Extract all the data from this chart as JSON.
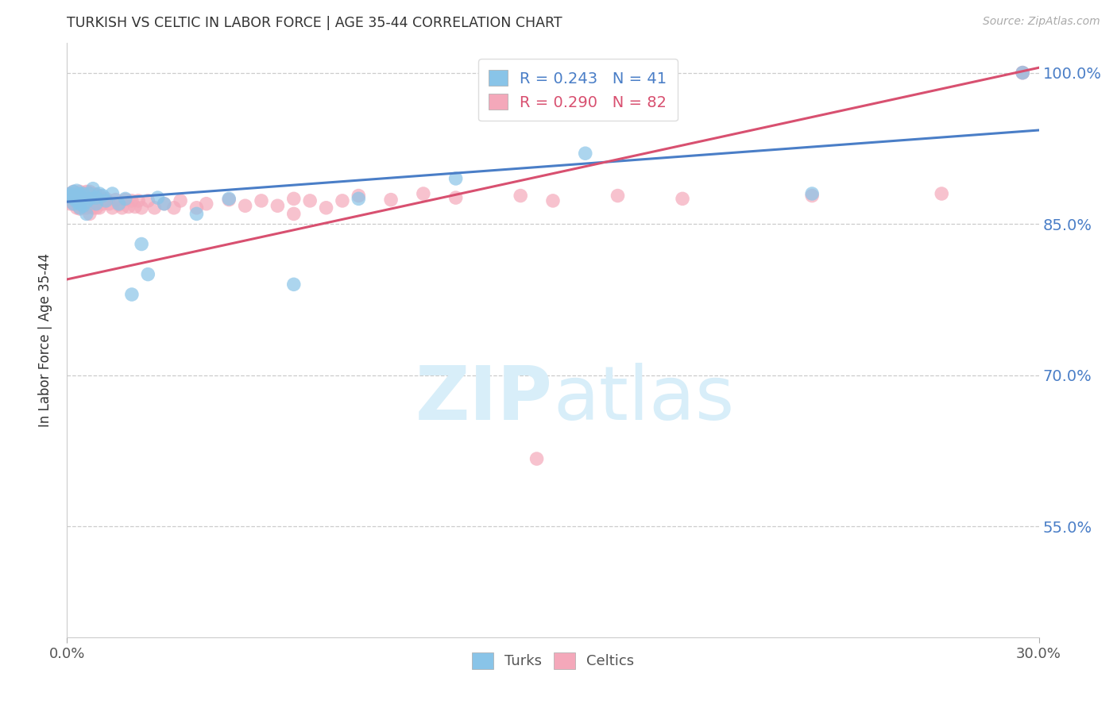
{
  "title": "TURKISH VS CELTIC IN LABOR FORCE | AGE 35-44 CORRELATION CHART",
  "source": "Source: ZipAtlas.com",
  "ylabel": "In Labor Force | Age 35-44",
  "xlim": [
    0.0,
    0.3
  ],
  "ylim": [
    0.44,
    1.03
  ],
  "yticks": [
    0.55,
    0.7,
    0.85,
    1.0
  ],
  "xtick_positions": [
    0.0,
    0.3
  ],
  "xtick_labels": [
    "0.0%",
    "30.0%"
  ],
  "blue_R": 0.243,
  "blue_N": 41,
  "pink_R": 0.29,
  "pink_N": 82,
  "blue_color": "#89C4E8",
  "pink_color": "#F4A8BA",
  "blue_line_color": "#4A7EC7",
  "pink_line_color": "#D85070",
  "watermark_color": "#D8EEF9",
  "background_color": "#ffffff",
  "blue_line_y0": 0.872,
  "blue_line_y1": 0.943,
  "pink_line_y0": 0.795,
  "pink_line_y1": 1.005,
  "turks_x": [
    0.001,
    0.001,
    0.002,
    0.002,
    0.002,
    0.003,
    0.003,
    0.003,
    0.004,
    0.004,
    0.004,
    0.004,
    0.005,
    0.005,
    0.005,
    0.006,
    0.006,
    0.007,
    0.007,
    0.008,
    0.009,
    0.009,
    0.01,
    0.011,
    0.012,
    0.014,
    0.016,
    0.018,
    0.02,
    0.023,
    0.025,
    0.028,
    0.03,
    0.04,
    0.05,
    0.07,
    0.09,
    0.12,
    0.16,
    0.23,
    0.295
  ],
  "turks_y": [
    0.88,
    0.878,
    0.882,
    0.875,
    0.87,
    0.883,
    0.876,
    0.872,
    0.878,
    0.87,
    0.866,
    0.88,
    0.875,
    0.868,
    0.88,
    0.872,
    0.86,
    0.875,
    0.88,
    0.885,
    0.87,
    0.876,
    0.88,
    0.878,
    0.873,
    0.88,
    0.87,
    0.875,
    0.78,
    0.83,
    0.8,
    0.876,
    0.87,
    0.86,
    0.875,
    0.79,
    0.875,
    0.895,
    0.92,
    0.88,
    1.0
  ],
  "celts_x": [
    0.001,
    0.001,
    0.001,
    0.002,
    0.002,
    0.002,
    0.002,
    0.003,
    0.003,
    0.003,
    0.003,
    0.003,
    0.004,
    0.004,
    0.004,
    0.004,
    0.004,
    0.005,
    0.005,
    0.005,
    0.005,
    0.005,
    0.006,
    0.006,
    0.006,
    0.006,
    0.007,
    0.007,
    0.007,
    0.007,
    0.008,
    0.008,
    0.008,
    0.008,
    0.009,
    0.009,
    0.009,
    0.01,
    0.01,
    0.01,
    0.011,
    0.012,
    0.013,
    0.014,
    0.015,
    0.016,
    0.017,
    0.018,
    0.019,
    0.02,
    0.021,
    0.022,
    0.023,
    0.025,
    0.027,
    0.03,
    0.033,
    0.035,
    0.04,
    0.043,
    0.05,
    0.055,
    0.06,
    0.065,
    0.07,
    0.07,
    0.075,
    0.08,
    0.085,
    0.09,
    0.1,
    0.11,
    0.12,
    0.14,
    0.15,
    0.17,
    0.19,
    0.23,
    0.27,
    0.295,
    0.145,
    0.295
  ],
  "celts_y": [
    0.88,
    0.876,
    0.87,
    0.882,
    0.876,
    0.87,
    0.875,
    0.88,
    0.873,
    0.866,
    0.878,
    0.87,
    0.882,
    0.875,
    0.87,
    0.865,
    0.876,
    0.88,
    0.874,
    0.867,
    0.876,
    0.87,
    0.882,
    0.875,
    0.866,
    0.878,
    0.882,
    0.875,
    0.868,
    0.86,
    0.88,
    0.873,
    0.866,
    0.877,
    0.879,
    0.873,
    0.866,
    0.878,
    0.873,
    0.866,
    0.87,
    0.875,
    0.87,
    0.866,
    0.874,
    0.869,
    0.866,
    0.874,
    0.867,
    0.873,
    0.867,
    0.873,
    0.866,
    0.873,
    0.866,
    0.87,
    0.866,
    0.873,
    0.866,
    0.87,
    0.874,
    0.868,
    0.873,
    0.868,
    0.875,
    0.86,
    0.873,
    0.866,
    0.873,
    0.878,
    0.874,
    0.88,
    0.876,
    0.878,
    0.873,
    0.878,
    0.875,
    0.878,
    0.88,
    1.0,
    0.617,
    1.0
  ]
}
